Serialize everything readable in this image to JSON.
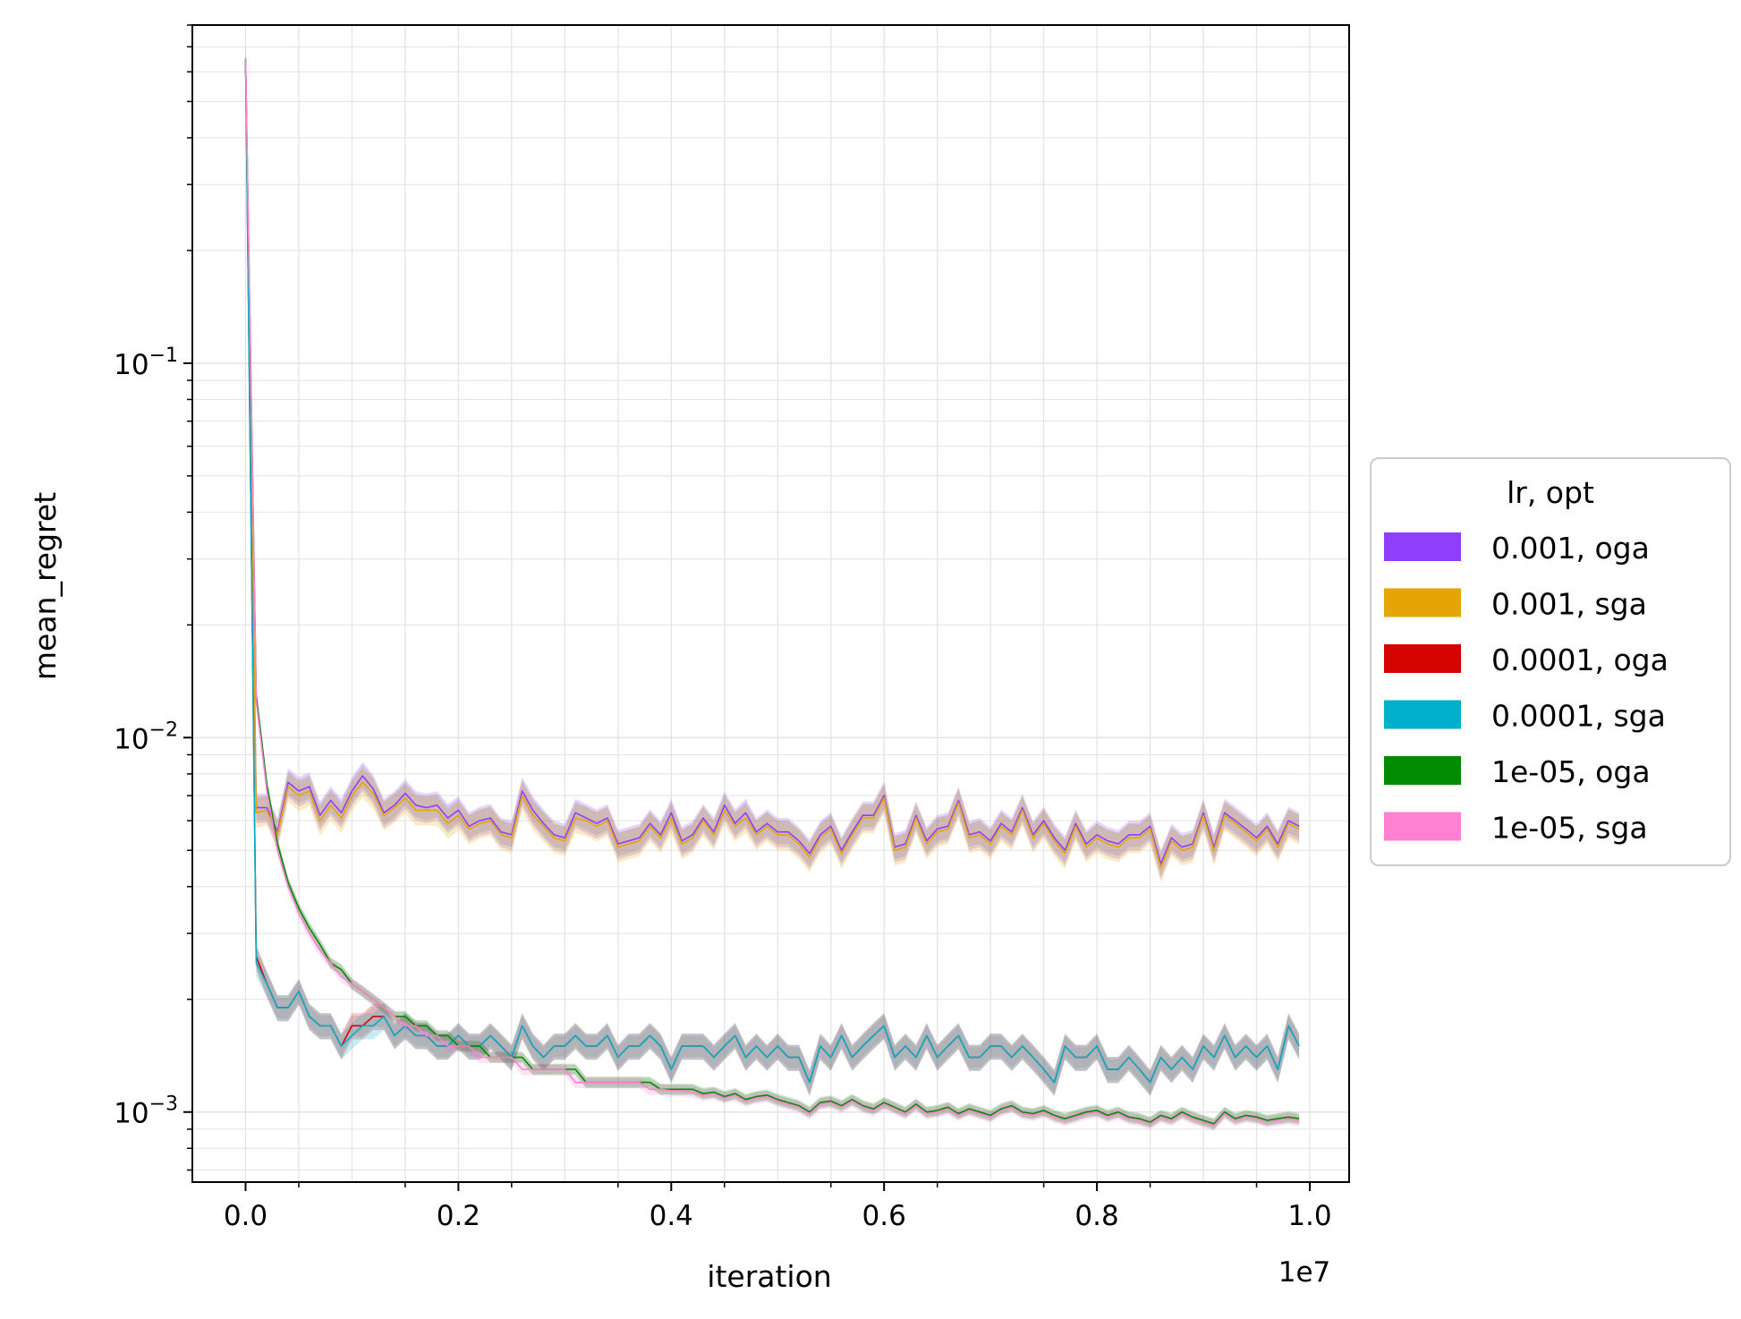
{
  "chart_data": {
    "type": "line",
    "xlabel": "iteration",
    "ylabel": "mean_regret",
    "x_offset_label": "1e7",
    "x_ticks": [
      0.0,
      0.2,
      0.4,
      0.6,
      0.8,
      1.0
    ],
    "x_tick_labels": [
      "0.0",
      "0.2",
      "0.4",
      "0.6",
      "0.8",
      "1.0"
    ],
    "y_scale": "log",
    "y_ticks": [
      0.001,
      0.01,
      0.1
    ],
    "y_tick_labels": [
      {
        "base": "10",
        "exp": "−3"
      },
      {
        "base": "10",
        "exp": "−2"
      },
      {
        "base": "10",
        "exp": "−1"
      }
    ],
    "xlim": [
      -0.05,
      1.037
    ],
    "ylim": [
      0.00065,
      0.8
    ],
    "grid": true,
    "legend_title": "lr, opt",
    "legend_position": "outside-right",
    "x_values_unit": "x 1e7",
    "series": [
      {
        "name": "0.001, oga",
        "color": "#8f3ffb",
        "x_step": 0.01,
        "values": [
          0.65,
          0.0065,
          0.0065,
          0.0056,
          0.0076,
          0.0072,
          0.0074,
          0.0062,
          0.0068,
          0.0063,
          0.0072,
          0.0079,
          0.0073,
          0.0063,
          0.0066,
          0.0071,
          0.0066,
          0.0065,
          0.0066,
          0.0061,
          0.0064,
          0.0058,
          0.006,
          0.0061,
          0.0056,
          0.0055,
          0.0072,
          0.0064,
          0.0059,
          0.0055,
          0.0054,
          0.0063,
          0.0061,
          0.0059,
          0.0061,
          0.0052,
          0.0053,
          0.0054,
          0.0059,
          0.0055,
          0.0063,
          0.0053,
          0.0055,
          0.0061,
          0.0056,
          0.0066,
          0.0059,
          0.0063,
          0.0056,
          0.0059,
          0.0056,
          0.0056,
          0.0053,
          0.0049,
          0.0055,
          0.0058,
          0.005,
          0.0056,
          0.0062,
          0.0062,
          0.007,
          0.0051,
          0.0052,
          0.0062,
          0.0053,
          0.0057,
          0.0058,
          0.0068,
          0.0055,
          0.0056,
          0.0053,
          0.0059,
          0.0056,
          0.0065,
          0.0055,
          0.006,
          0.0054,
          0.005,
          0.0059,
          0.0052,
          0.0055,
          0.0053,
          0.0052,
          0.0055,
          0.0055,
          0.0058,
          0.0046,
          0.0054,
          0.0051,
          0.0052,
          0.0063,
          0.0051,
          0.0063,
          0.006,
          0.0057,
          0.0054,
          0.0058,
          0.0052,
          0.006,
          0.0058
        ]
      },
      {
        "name": "0.001, sga",
        "color": "#e5a506",
        "x_step": 0.01,
        "values": [
          0.65,
          0.0063,
          0.0064,
          0.0055,
          0.0074,
          0.007,
          0.0072,
          0.006,
          0.0066,
          0.0061,
          0.007,
          0.0076,
          0.0071,
          0.0062,
          0.0065,
          0.0069,
          0.0064,
          0.0064,
          0.0064,
          0.0059,
          0.0062,
          0.0057,
          0.0059,
          0.006,
          0.0055,
          0.0054,
          0.007,
          0.0062,
          0.0058,
          0.0054,
          0.0053,
          0.0061,
          0.006,
          0.0058,
          0.006,
          0.0051,
          0.0052,
          0.0053,
          0.0058,
          0.0054,
          0.0061,
          0.0052,
          0.0054,
          0.006,
          0.0055,
          0.0064,
          0.0058,
          0.0061,
          0.0055,
          0.0058,
          0.0055,
          0.0055,
          0.0052,
          0.0048,
          0.0054,
          0.0057,
          0.0049,
          0.0055,
          0.0061,
          0.0061,
          0.0069,
          0.005,
          0.0051,
          0.0061,
          0.0052,
          0.0056,
          0.0057,
          0.0067,
          0.0054,
          0.0055,
          0.0052,
          0.0058,
          0.0055,
          0.0064,
          0.0054,
          0.0059,
          0.0053,
          0.0049,
          0.0058,
          0.0051,
          0.0054,
          0.0052,
          0.0051,
          0.0054,
          0.0054,
          0.0057,
          0.0045,
          0.0053,
          0.005,
          0.0051,
          0.0062,
          0.005,
          0.0062,
          0.0059,
          0.0056,
          0.0053,
          0.0057,
          0.0051,
          0.0059,
          0.0057
        ]
      },
      {
        "name": "0.0001, oga",
        "color": "#d60303",
        "x_step": 0.01,
        "values": [
          0.65,
          0.0026,
          0.0022,
          0.0019,
          0.0019,
          0.0021,
          0.0018,
          0.0017,
          0.0017,
          0.0015,
          0.0017,
          0.0017,
          0.0018,
          0.0018,
          0.0016,
          0.0017,
          0.0016,
          0.0016,
          0.0015,
          0.0015,
          0.0016,
          0.0015,
          0.0015,
          0.0016,
          0.0015,
          0.0014,
          0.0017,
          0.0015,
          0.0014,
          0.0015,
          0.0015,
          0.0016,
          0.0015,
          0.0015,
          0.0016,
          0.0014,
          0.0015,
          0.0015,
          0.0016,
          0.0015,
          0.0013,
          0.0015,
          0.0015,
          0.0015,
          0.0014,
          0.0015,
          0.0016,
          0.0014,
          0.0015,
          0.0014,
          0.0015,
          0.0014,
          0.0014,
          0.0012,
          0.0015,
          0.0014,
          0.0016,
          0.0014,
          0.0015,
          0.0016,
          0.0017,
          0.0014,
          0.0015,
          0.0014,
          0.0016,
          0.0014,
          0.0015,
          0.0016,
          0.0014,
          0.0014,
          0.0015,
          0.0015,
          0.0014,
          0.0015,
          0.0014,
          0.0013,
          0.0012,
          0.0015,
          0.0014,
          0.0014,
          0.0015,
          0.0013,
          0.0013,
          0.0014,
          0.0013,
          0.0012,
          0.0014,
          0.0013,
          0.0014,
          0.0013,
          0.0015,
          0.0014,
          0.0016,
          0.0014,
          0.0015,
          0.0014,
          0.0015,
          0.0013,
          0.0017,
          0.0015
        ]
      },
      {
        "name": "0.0001, sga",
        "color": "#00afc9",
        "x_step": 0.01,
        "values": [
          0.65,
          0.0025,
          0.0022,
          0.0019,
          0.0019,
          0.0021,
          0.0018,
          0.0017,
          0.0017,
          0.0015,
          0.0016,
          0.0017,
          0.0017,
          0.0018,
          0.0016,
          0.0017,
          0.0016,
          0.0016,
          0.0015,
          0.0015,
          0.0016,
          0.0015,
          0.0015,
          0.0016,
          0.0015,
          0.0014,
          0.0017,
          0.0015,
          0.0014,
          0.0015,
          0.0015,
          0.0016,
          0.0015,
          0.0015,
          0.0016,
          0.0014,
          0.0015,
          0.0015,
          0.0016,
          0.0015,
          0.0013,
          0.0015,
          0.0015,
          0.0015,
          0.0014,
          0.0015,
          0.0016,
          0.0014,
          0.0015,
          0.0014,
          0.0015,
          0.0014,
          0.0014,
          0.0012,
          0.0015,
          0.0014,
          0.0016,
          0.0014,
          0.0015,
          0.0016,
          0.0017,
          0.0014,
          0.0015,
          0.0014,
          0.0016,
          0.0014,
          0.0015,
          0.0016,
          0.0014,
          0.0014,
          0.0015,
          0.0015,
          0.0014,
          0.0015,
          0.0014,
          0.0013,
          0.0012,
          0.0015,
          0.0014,
          0.0014,
          0.0015,
          0.0013,
          0.0013,
          0.0014,
          0.0013,
          0.0012,
          0.0014,
          0.0013,
          0.0014,
          0.0013,
          0.0015,
          0.0014,
          0.0016,
          0.0014,
          0.0015,
          0.0014,
          0.0015,
          0.0013,
          0.0017,
          0.0015
        ]
      },
      {
        "name": "1e-05, oga",
        "color": "#008b00",
        "x_step": 0.01,
        "values": [
          0.65,
          0.013,
          0.0075,
          0.0052,
          0.0041,
          0.0035,
          0.0031,
          0.0028,
          0.0025,
          0.0024,
          0.0022,
          0.0021,
          0.002,
          0.0019,
          0.0018,
          0.0018,
          0.0017,
          0.0017,
          0.0016,
          0.0016,
          0.0015,
          0.0015,
          0.0015,
          0.0014,
          0.0014,
          0.0014,
          0.0014,
          0.0013,
          0.0013,
          0.0013,
          0.0013,
          0.0013,
          0.0012,
          0.0012,
          0.0012,
          0.0012,
          0.0012,
          0.0012,
          0.0012,
          0.00115,
          0.00115,
          0.00115,
          0.00115,
          0.00112,
          0.00113,
          0.0011,
          0.00112,
          0.00108,
          0.0011,
          0.00111,
          0.00108,
          0.00106,
          0.00104,
          0.001,
          0.00106,
          0.00107,
          0.00104,
          0.00108,
          0.00104,
          0.00102,
          0.00106,
          0.00103,
          0.001,
          0.00105,
          0.001,
          0.00101,
          0.00103,
          0.00099,
          0.00102,
          0.001,
          0.00098,
          0.00102,
          0.00104,
          0.001,
          0.00099,
          0.00101,
          0.00098,
          0.00096,
          0.00098,
          0.001,
          0.00101,
          0.00098,
          0.001,
          0.00097,
          0.00096,
          0.00094,
          0.00098,
          0.00096,
          0.001,
          0.00097,
          0.00095,
          0.00093,
          0.001,
          0.00096,
          0.00098,
          0.00097,
          0.00095,
          0.00096,
          0.00097,
          0.00096
        ]
      },
      {
        "name": "1e-05, sga",
        "color": "#ff81d1",
        "x_step": 0.01,
        "values": [
          0.65,
          0.0125,
          0.0072,
          0.005,
          0.004,
          0.0034,
          0.003,
          0.0027,
          0.0025,
          0.0023,
          0.0022,
          0.0021,
          0.002,
          0.0019,
          0.0018,
          0.0017,
          0.0017,
          0.0016,
          0.0016,
          0.0015,
          0.0015,
          0.0015,
          0.0014,
          0.0014,
          0.0014,
          0.0014,
          0.0013,
          0.0013,
          0.0013,
          0.0013,
          0.0013,
          0.0012,
          0.0012,
          0.0012,
          0.0012,
          0.0012,
          0.0012,
          0.0012,
          0.00115,
          0.00115,
          0.00114,
          0.00114,
          0.00113,
          0.00111,
          0.00112,
          0.00109,
          0.00111,
          0.00107,
          0.00109,
          0.0011,
          0.00107,
          0.00105,
          0.00103,
          0.00099,
          0.00105,
          0.00106,
          0.00103,
          0.00107,
          0.00103,
          0.00101,
          0.00105,
          0.00102,
          0.00099,
          0.00104,
          0.00099,
          0.001,
          0.00102,
          0.00098,
          0.00101,
          0.00099,
          0.00097,
          0.00101,
          0.00103,
          0.00099,
          0.00098,
          0.001,
          0.00097,
          0.00095,
          0.00097,
          0.00099,
          0.001,
          0.00097,
          0.00099,
          0.00096,
          0.00095,
          0.00093,
          0.00097,
          0.00095,
          0.00099,
          0.00096,
          0.00094,
          0.00092,
          0.00099,
          0.00095,
          0.00097,
          0.00096,
          0.00094,
          0.00095,
          0.00096,
          0.00095
        ]
      }
    ]
  }
}
